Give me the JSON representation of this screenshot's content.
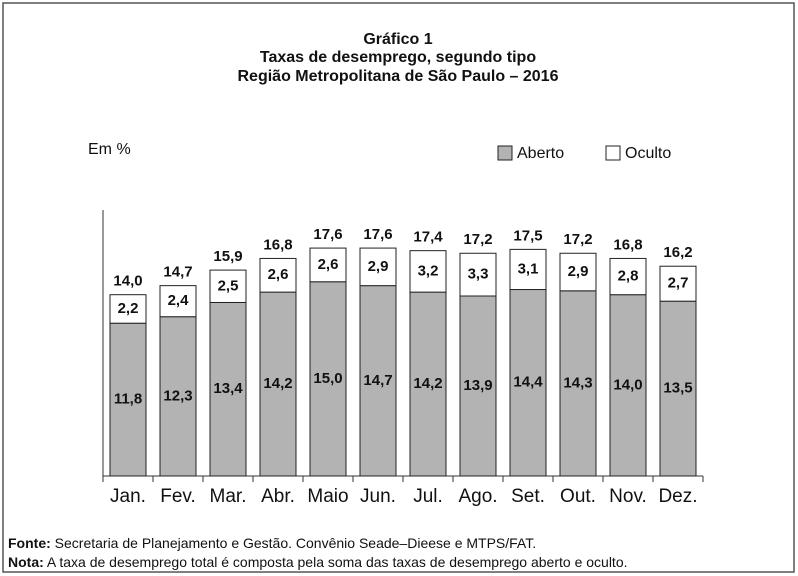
{
  "chart_data": {
    "type": "stacked-bar",
    "title": "Gráfico 1",
    "subtitle": "Taxas de desemprego, segundo tipo",
    "subtitle2": "Região Metropolitana de São Paulo – 2016",
    "unit_label": "Em %",
    "categories": [
      "Jan.",
      "Fev.",
      "Mar.",
      "Abr.",
      "Maio",
      "Jun.",
      "Jul.",
      "Ago.",
      "Set.",
      "Out.",
      "Nov.",
      "Dez."
    ],
    "series": [
      {
        "name": "Aberto",
        "color": "#b3b3b3",
        "values": [
          11.8,
          12.3,
          13.4,
          14.2,
          15.0,
          14.7,
          14.2,
          13.9,
          14.4,
          14.3,
          14.0,
          13.5
        ],
        "value_labels": [
          "11,8",
          "12,3",
          "13,4",
          "14,2",
          "15,0",
          "14,7",
          "14,2",
          "13,9",
          "14,4",
          "14,3",
          "14,0",
          "13,5"
        ]
      },
      {
        "name": "Oculto",
        "color": "#ffffff",
        "values": [
          2.2,
          2.4,
          2.5,
          2.6,
          2.6,
          2.9,
          3.2,
          3.3,
          3.1,
          2.9,
          2.8,
          2.7
        ],
        "value_labels": [
          "2,2",
          "2,4",
          "2,5",
          "2,6",
          "2,6",
          "2,9",
          "3,2",
          "3,3",
          "3,1",
          "2,9",
          "2,8",
          "2,7"
        ]
      }
    ],
    "totals": [
      14.0,
      14.7,
      15.9,
      16.8,
      17.6,
      17.6,
      17.4,
      17.2,
      17.5,
      17.2,
      16.8,
      16.2
    ],
    "total_labels": [
      "14,0",
      "14,7",
      "15,9",
      "16,8",
      "17,6",
      "17,6",
      "17,4",
      "17,2",
      "17,5",
      "17,2",
      "16,8",
      "16,2"
    ],
    "ylim": [
      0,
      20
    ],
    "grid": false,
    "legend": "top-right",
    "source_label": "Fonte:",
    "source": "Secretaria de Planejamento e Gestão. Convênio Seade–Dieese e MTPS/FAT.",
    "note_label": "Nota:",
    "note": "A taxa de desemprego total é composta pela soma das taxas de desemprego aberto e oculto."
  }
}
